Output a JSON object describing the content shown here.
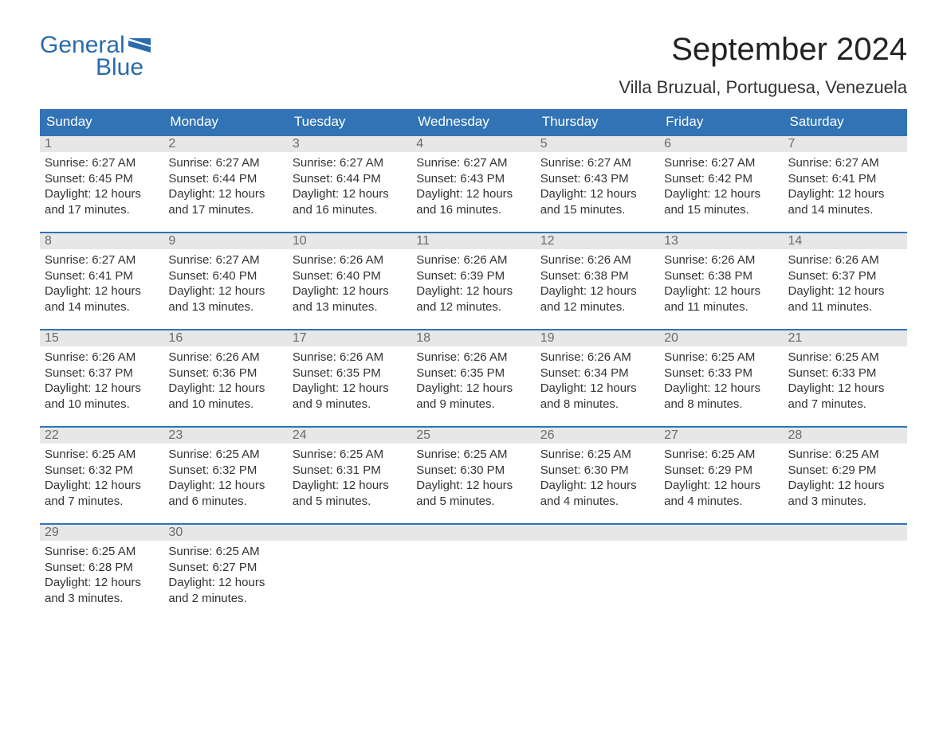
{
  "brand": {
    "name_top": "General",
    "name_bottom": "Blue",
    "color": "#2a6bad"
  },
  "title": "September 2024",
  "location": "Villa Bruzual, Portuguesa, Venezuela",
  "colors": {
    "header_bg": "#3173b5",
    "header_text": "#ffffff",
    "daynum_bg": "#e7e7e7",
    "daynum_text": "#6a6a6a",
    "body_text": "#333333",
    "week_border": "#3173b5"
  },
  "day_headers": [
    "Sunday",
    "Monday",
    "Tuesday",
    "Wednesday",
    "Thursday",
    "Friday",
    "Saturday"
  ],
  "weeks": [
    [
      {
        "n": "1",
        "sunrise": "Sunrise: 6:27 AM",
        "sunset": "Sunset: 6:45 PM",
        "dl1": "Daylight: 12 hours",
        "dl2": "and 17 minutes."
      },
      {
        "n": "2",
        "sunrise": "Sunrise: 6:27 AM",
        "sunset": "Sunset: 6:44 PM",
        "dl1": "Daylight: 12 hours",
        "dl2": "and 17 minutes."
      },
      {
        "n": "3",
        "sunrise": "Sunrise: 6:27 AM",
        "sunset": "Sunset: 6:44 PM",
        "dl1": "Daylight: 12 hours",
        "dl2": "and 16 minutes."
      },
      {
        "n": "4",
        "sunrise": "Sunrise: 6:27 AM",
        "sunset": "Sunset: 6:43 PM",
        "dl1": "Daylight: 12 hours",
        "dl2": "and 16 minutes."
      },
      {
        "n": "5",
        "sunrise": "Sunrise: 6:27 AM",
        "sunset": "Sunset: 6:43 PM",
        "dl1": "Daylight: 12 hours",
        "dl2": "and 15 minutes."
      },
      {
        "n": "6",
        "sunrise": "Sunrise: 6:27 AM",
        "sunset": "Sunset: 6:42 PM",
        "dl1": "Daylight: 12 hours",
        "dl2": "and 15 minutes."
      },
      {
        "n": "7",
        "sunrise": "Sunrise: 6:27 AM",
        "sunset": "Sunset: 6:41 PM",
        "dl1": "Daylight: 12 hours",
        "dl2": "and 14 minutes."
      }
    ],
    [
      {
        "n": "8",
        "sunrise": "Sunrise: 6:27 AM",
        "sunset": "Sunset: 6:41 PM",
        "dl1": "Daylight: 12 hours",
        "dl2": "and 14 minutes."
      },
      {
        "n": "9",
        "sunrise": "Sunrise: 6:27 AM",
        "sunset": "Sunset: 6:40 PM",
        "dl1": "Daylight: 12 hours",
        "dl2": "and 13 minutes."
      },
      {
        "n": "10",
        "sunrise": "Sunrise: 6:26 AM",
        "sunset": "Sunset: 6:40 PM",
        "dl1": "Daylight: 12 hours",
        "dl2": "and 13 minutes."
      },
      {
        "n": "11",
        "sunrise": "Sunrise: 6:26 AM",
        "sunset": "Sunset: 6:39 PM",
        "dl1": "Daylight: 12 hours",
        "dl2": "and 12 minutes."
      },
      {
        "n": "12",
        "sunrise": "Sunrise: 6:26 AM",
        "sunset": "Sunset: 6:38 PM",
        "dl1": "Daylight: 12 hours",
        "dl2": "and 12 minutes."
      },
      {
        "n": "13",
        "sunrise": "Sunrise: 6:26 AM",
        "sunset": "Sunset: 6:38 PM",
        "dl1": "Daylight: 12 hours",
        "dl2": "and 11 minutes."
      },
      {
        "n": "14",
        "sunrise": "Sunrise: 6:26 AM",
        "sunset": "Sunset: 6:37 PM",
        "dl1": "Daylight: 12 hours",
        "dl2": "and 11 minutes."
      }
    ],
    [
      {
        "n": "15",
        "sunrise": "Sunrise: 6:26 AM",
        "sunset": "Sunset: 6:37 PM",
        "dl1": "Daylight: 12 hours",
        "dl2": "and 10 minutes."
      },
      {
        "n": "16",
        "sunrise": "Sunrise: 6:26 AM",
        "sunset": "Sunset: 6:36 PM",
        "dl1": "Daylight: 12 hours",
        "dl2": "and 10 minutes."
      },
      {
        "n": "17",
        "sunrise": "Sunrise: 6:26 AM",
        "sunset": "Sunset: 6:35 PM",
        "dl1": "Daylight: 12 hours",
        "dl2": "and 9 minutes."
      },
      {
        "n": "18",
        "sunrise": "Sunrise: 6:26 AM",
        "sunset": "Sunset: 6:35 PM",
        "dl1": "Daylight: 12 hours",
        "dl2": "and 9 minutes."
      },
      {
        "n": "19",
        "sunrise": "Sunrise: 6:26 AM",
        "sunset": "Sunset: 6:34 PM",
        "dl1": "Daylight: 12 hours",
        "dl2": "and 8 minutes."
      },
      {
        "n": "20",
        "sunrise": "Sunrise: 6:25 AM",
        "sunset": "Sunset: 6:33 PM",
        "dl1": "Daylight: 12 hours",
        "dl2": "and 8 minutes."
      },
      {
        "n": "21",
        "sunrise": "Sunrise: 6:25 AM",
        "sunset": "Sunset: 6:33 PM",
        "dl1": "Daylight: 12 hours",
        "dl2": "and 7 minutes."
      }
    ],
    [
      {
        "n": "22",
        "sunrise": "Sunrise: 6:25 AM",
        "sunset": "Sunset: 6:32 PM",
        "dl1": "Daylight: 12 hours",
        "dl2": "and 7 minutes."
      },
      {
        "n": "23",
        "sunrise": "Sunrise: 6:25 AM",
        "sunset": "Sunset: 6:32 PM",
        "dl1": "Daylight: 12 hours",
        "dl2": "and 6 minutes."
      },
      {
        "n": "24",
        "sunrise": "Sunrise: 6:25 AM",
        "sunset": "Sunset: 6:31 PM",
        "dl1": "Daylight: 12 hours",
        "dl2": "and 5 minutes."
      },
      {
        "n": "25",
        "sunrise": "Sunrise: 6:25 AM",
        "sunset": "Sunset: 6:30 PM",
        "dl1": "Daylight: 12 hours",
        "dl2": "and 5 minutes."
      },
      {
        "n": "26",
        "sunrise": "Sunrise: 6:25 AM",
        "sunset": "Sunset: 6:30 PM",
        "dl1": "Daylight: 12 hours",
        "dl2": "and 4 minutes."
      },
      {
        "n": "27",
        "sunrise": "Sunrise: 6:25 AM",
        "sunset": "Sunset: 6:29 PM",
        "dl1": "Daylight: 12 hours",
        "dl2": "and 4 minutes."
      },
      {
        "n": "28",
        "sunrise": "Sunrise: 6:25 AM",
        "sunset": "Sunset: 6:29 PM",
        "dl1": "Daylight: 12 hours",
        "dl2": "and 3 minutes."
      }
    ],
    [
      {
        "n": "29",
        "sunrise": "Sunrise: 6:25 AM",
        "sunset": "Sunset: 6:28 PM",
        "dl1": "Daylight: 12 hours",
        "dl2": "and 3 minutes."
      },
      {
        "n": "30",
        "sunrise": "Sunrise: 6:25 AM",
        "sunset": "Sunset: 6:27 PM",
        "dl1": "Daylight: 12 hours",
        "dl2": "and 2 minutes."
      },
      {
        "n": "",
        "sunrise": "",
        "sunset": "",
        "dl1": "",
        "dl2": ""
      },
      {
        "n": "",
        "sunrise": "",
        "sunset": "",
        "dl1": "",
        "dl2": ""
      },
      {
        "n": "",
        "sunrise": "",
        "sunset": "",
        "dl1": "",
        "dl2": ""
      },
      {
        "n": "",
        "sunrise": "",
        "sunset": "",
        "dl1": "",
        "dl2": ""
      },
      {
        "n": "",
        "sunrise": "",
        "sunset": "",
        "dl1": "",
        "dl2": ""
      }
    ]
  ]
}
